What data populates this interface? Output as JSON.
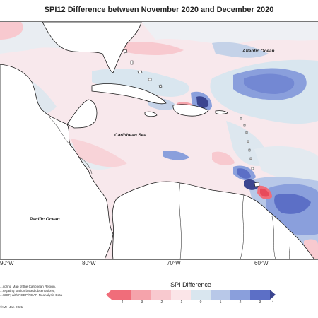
{
  "title": "SPI12 Difference between November 2020 and December 2020",
  "labels": {
    "atlantic": "Atlantic Ocean",
    "caribbean": "Caribbean Sea",
    "pacific": "Pacific Ocean"
  },
  "longitude_ticks": [
    "90°W",
    "80°W",
    "70°W",
    "60°W"
  ],
  "credit_lines": [
    "...itoring Map of the Caribbean Region,",
    "...regating station based observations,",
    "...CIOF, with NCEP/NCAR Reanalysis Data"
  ],
  "copyright": "©IMH  Jan-2021",
  "legend": {
    "title": "SPI Difference",
    "ticks": [
      "-4",
      "-3",
      "-2",
      "-1",
      "0",
      "1",
      "2",
      "3",
      "4"
    ],
    "colors": {
      "c_neg4": "#f06d7a",
      "c_neg3": "#f5a3ab",
      "c_neg2": "#f8c9cf",
      "c_neg1": "#fbe5e8",
      "c_pos1": "#d9e6ef",
      "c_pos2": "#b8c8e8",
      "c_pos3": "#8a9fdc",
      "c_pos4": "#5c6fc6",
      "c_pos5": "#3b4590"
    }
  },
  "colors": {
    "land": "#ffffff",
    "coast": "#1a1a1a",
    "ocean_base": "#f7e9ec"
  }
}
